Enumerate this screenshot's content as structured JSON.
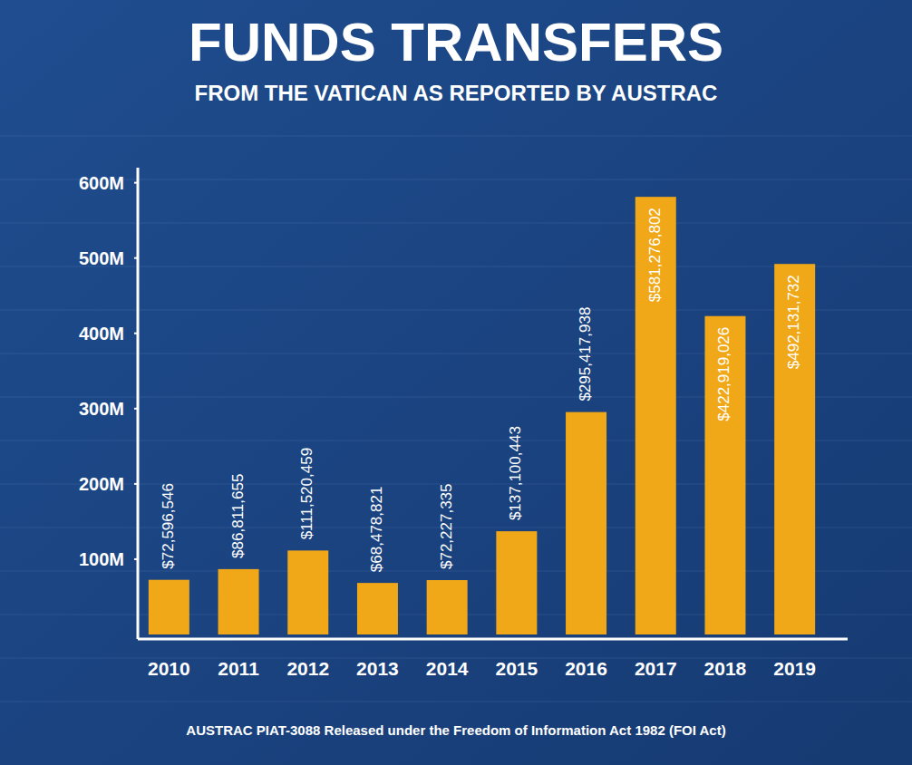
{
  "chart_data": {
    "type": "bar",
    "title": "FUNDS TRANSFERS",
    "subtitle": "FROM THE VATICAN AS REPORTED BY AUSTRAC",
    "annotations": [
      "AUSTRAC PIAT-3088 Released under the Freedom of Information Act 1982 (FOI Act)"
    ],
    "categories": [
      "2010",
      "2011",
      "2012",
      "2013",
      "2014",
      "2015",
      "2016",
      "2017",
      "2018",
      "2019"
    ],
    "values": [
      72596546,
      86811655,
      111520459,
      68478821,
      72227335,
      137100443,
      295417938,
      581276802,
      422919026,
      492131732
    ],
    "value_labels": [
      "$72,596,546",
      "$86,811,655",
      "$111,520,459",
      "$68,478,821",
      "$72,227,335",
      "$137,100,443",
      "$295,417,938",
      "$581,276,802",
      "$422,919,026",
      "$492,131,732"
    ],
    "color": "#f0a818",
    "ylim": [
      0,
      620000000
    ],
    "yticks": [
      {
        "value": 100000000,
        "label": "100M"
      },
      {
        "value": 200000000,
        "label": "200M"
      },
      {
        "value": 300000000,
        "label": "300M"
      },
      {
        "value": 400000000,
        "label": "400M"
      },
      {
        "value": 500000000,
        "label": "500M"
      },
      {
        "value": 600000000,
        "label": "600M"
      }
    ],
    "grid": false,
    "data_labels": true
  }
}
